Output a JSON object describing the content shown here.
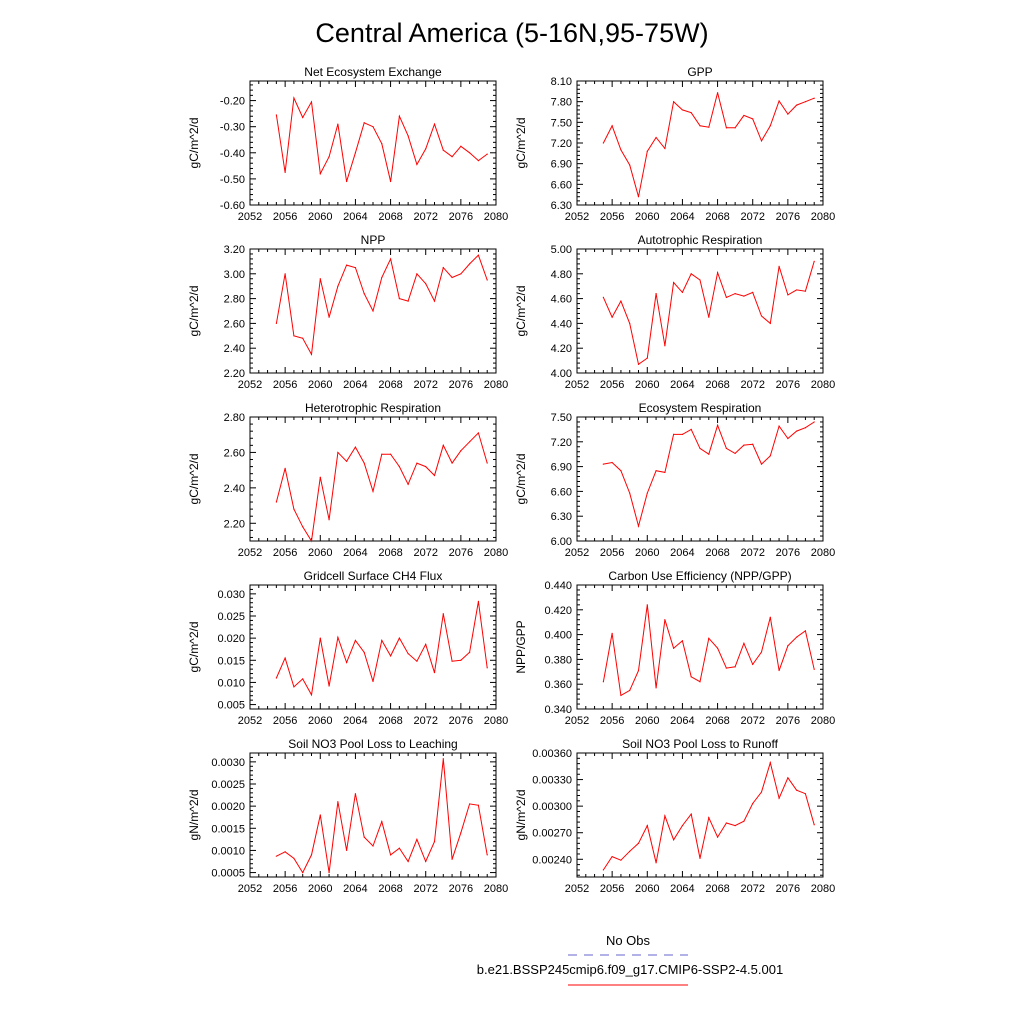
{
  "page_title": "Central America (5-16N,95-75W)",
  "legend": {
    "obs_label": "No Obs",
    "obs_color": "#6666cc",
    "model_label": "b.e21.BSSP245cmip6.f09_g17.CMIP6-SSP2-4.5.001",
    "model_color": "#ff0000"
  },
  "chart_data": [
    {
      "type": "line",
      "title": "Net Ecosystem Exchange",
      "ylabel": "gC/m^2/d",
      "xlim": [
        2052,
        2080
      ],
      "ylim": [
        -0.6,
        -0.125
      ],
      "xticks": [
        "2052",
        "2056",
        "2060",
        "2064",
        "2068",
        "2072",
        "2076",
        "2080"
      ],
      "yticks": [
        "-0.60",
        "-0.50",
        "-0.40",
        "-0.30",
        "-0.20"
      ],
      "x": [
        2055,
        2056,
        2057,
        2058,
        2059,
        2060,
        2061,
        2062,
        2063,
        2064,
        2065,
        2066,
        2067,
        2068,
        2069,
        2070,
        2071,
        2072,
        2073,
        2074,
        2075,
        2076,
        2077,
        2078,
        2079
      ],
      "series": [
        {
          "values": [
            -0.255,
            -0.475,
            -0.19,
            -0.265,
            -0.205,
            -0.48,
            -0.415,
            -0.29,
            -0.51,
            -0.4,
            -0.285,
            -0.3,
            -0.365,
            -0.51,
            -0.26,
            -0.335,
            -0.445,
            -0.385,
            -0.29,
            -0.39,
            -0.415,
            -0.375,
            -0.4,
            -0.43,
            -0.405
          ]
        }
      ]
    },
    {
      "type": "line",
      "title": "GPP",
      "ylabel": "gC/m^2/d",
      "xlim": [
        2052,
        2080
      ],
      "ylim": [
        6.3,
        8.1
      ],
      "xticks": [
        "2052",
        "2056",
        "2060",
        "2064",
        "2068",
        "2072",
        "2076",
        "2080"
      ],
      "yticks": [
        "6.30",
        "6.60",
        "6.90",
        "7.20",
        "7.50",
        "7.80",
        "8.10"
      ],
      "x": [
        2055,
        2056,
        2057,
        2058,
        2059,
        2060,
        2061,
        2062,
        2063,
        2064,
        2065,
        2066,
        2067,
        2068,
        2069,
        2070,
        2071,
        2072,
        2073,
        2074,
        2075,
        2076,
        2077,
        2078,
        2079
      ],
      "series": [
        {
          "values": [
            7.2,
            7.45,
            7.1,
            6.88,
            6.42,
            7.08,
            7.28,
            7.12,
            7.8,
            7.68,
            7.64,
            7.45,
            7.43,
            7.93,
            7.42,
            7.42,
            7.6,
            7.55,
            7.23,
            7.45,
            7.81,
            7.62,
            7.75,
            7.8,
            7.85
          ]
        }
      ]
    },
    {
      "type": "line",
      "title": "NPP",
      "ylabel": "gC/m^2/d",
      "xlim": [
        2052,
        2080
      ],
      "ylim": [
        2.2,
        3.2
      ],
      "xticks": [
        "2052",
        "2056",
        "2060",
        "2064",
        "2068",
        "2072",
        "2076",
        "2080"
      ],
      "yticks": [
        "2.20",
        "2.40",
        "2.60",
        "2.80",
        "3.00",
        "3.20"
      ],
      "x": [
        2055,
        2056,
        2057,
        2058,
        2059,
        2060,
        2061,
        2062,
        2063,
        2064,
        2065,
        2066,
        2067,
        2068,
        2069,
        2070,
        2071,
        2072,
        2073,
        2074,
        2075,
        2076,
        2077,
        2078,
        2079
      ],
      "series": [
        {
          "values": [
            2.6,
            3.0,
            2.5,
            2.48,
            2.35,
            2.96,
            2.65,
            2.9,
            3.07,
            3.05,
            2.84,
            2.7,
            2.97,
            3.12,
            2.8,
            2.78,
            3.0,
            2.92,
            2.78,
            3.05,
            2.97,
            3.0,
            3.08,
            3.15,
            2.95
          ]
        }
      ]
    },
    {
      "type": "line",
      "title": "Autotrophic Respiration",
      "ylabel": "gC/m^2/d",
      "xlim": [
        2052,
        2080
      ],
      "ylim": [
        4.0,
        5.0
      ],
      "xticks": [
        "2052",
        "2056",
        "2060",
        "2064",
        "2068",
        "2072",
        "2076",
        "2080"
      ],
      "yticks": [
        "4.00",
        "4.20",
        "4.40",
        "4.60",
        "4.80",
        "5.00"
      ],
      "x": [
        2055,
        2056,
        2057,
        2058,
        2059,
        2060,
        2061,
        2062,
        2063,
        2064,
        2065,
        2066,
        2067,
        2068,
        2069,
        2070,
        2071,
        2072,
        2073,
        2074,
        2075,
        2076,
        2077,
        2078,
        2079
      ],
      "series": [
        {
          "values": [
            4.61,
            4.45,
            4.58,
            4.4,
            4.07,
            4.12,
            4.64,
            4.22,
            4.73,
            4.65,
            4.8,
            4.75,
            4.45,
            4.81,
            4.61,
            4.64,
            4.62,
            4.65,
            4.46,
            4.4,
            4.86,
            4.63,
            4.67,
            4.66,
            4.9
          ]
        }
      ]
    },
    {
      "type": "line",
      "title": "Heterotrophic Respiration",
      "ylabel": "gC/m^2/d",
      "xlim": [
        2052,
        2080
      ],
      "ylim": [
        2.1,
        2.8
      ],
      "xticks": [
        "2052",
        "2056",
        "2060",
        "2064",
        "2068",
        "2072",
        "2076",
        "2080"
      ],
      "yticks": [
        "2.20",
        "2.40",
        "2.60",
        "2.80"
      ],
      "x": [
        2055,
        2056,
        2057,
        2058,
        2059,
        2060,
        2061,
        2062,
        2063,
        2064,
        2065,
        2066,
        2067,
        2068,
        2069,
        2070,
        2071,
        2072,
        2073,
        2074,
        2075,
        2076,
        2077,
        2078,
        2079
      ],
      "series": [
        {
          "values": [
            2.32,
            2.51,
            2.28,
            2.18,
            2.1,
            2.46,
            2.22,
            2.6,
            2.55,
            2.63,
            2.54,
            2.38,
            2.59,
            2.59,
            2.52,
            2.42,
            2.54,
            2.52,
            2.47,
            2.64,
            2.54,
            2.61,
            2.66,
            2.71,
            2.54
          ]
        }
      ]
    },
    {
      "type": "line",
      "title": "Ecosystem Respiration",
      "ylabel": "gC/m^2/d",
      "xlim": [
        2052,
        2080
      ],
      "ylim": [
        6.0,
        7.5
      ],
      "xticks": [
        "2052",
        "2056",
        "2060",
        "2064",
        "2068",
        "2072",
        "2076",
        "2080"
      ],
      "yticks": [
        "6.00",
        "6.30",
        "6.60",
        "6.90",
        "7.20",
        "7.50"
      ],
      "x": [
        2055,
        2056,
        2057,
        2058,
        2059,
        2060,
        2061,
        2062,
        2063,
        2064,
        2065,
        2066,
        2067,
        2068,
        2069,
        2070,
        2071,
        2072,
        2073,
        2074,
        2075,
        2076,
        2077,
        2078,
        2079
      ],
      "series": [
        {
          "values": [
            6.93,
            6.95,
            6.85,
            6.58,
            6.18,
            6.58,
            6.85,
            6.83,
            7.29,
            7.29,
            7.35,
            7.12,
            7.05,
            7.4,
            7.12,
            7.06,
            7.16,
            7.17,
            6.93,
            7.03,
            7.39,
            7.24,
            7.33,
            7.37,
            7.44
          ]
        }
      ]
    },
    {
      "type": "line",
      "title": "Gridcell Surface CH4 Flux",
      "ylabel": "gC/m^2/d",
      "xlim": [
        2052,
        2080
      ],
      "ylim": [
        0.004,
        0.032
      ],
      "xticks": [
        "2052",
        "2056",
        "2060",
        "2064",
        "2068",
        "2072",
        "2076",
        "2080"
      ],
      "yticks": [
        "0.005",
        "0.010",
        "0.015",
        "0.020",
        "0.025",
        "0.030"
      ],
      "x": [
        2055,
        2056,
        2057,
        2058,
        2059,
        2060,
        2061,
        2062,
        2063,
        2064,
        2065,
        2066,
        2067,
        2068,
        2069,
        2070,
        2071,
        2072,
        2073,
        2074,
        2075,
        2076,
        2077,
        2078,
        2079
      ],
      "series": [
        {
          "values": [
            0.011,
            0.0155,
            0.009,
            0.0108,
            0.0072,
            0.02,
            0.0092,
            0.0202,
            0.0145,
            0.0195,
            0.0168,
            0.0102,
            0.0195,
            0.016,
            0.02,
            0.0165,
            0.0148,
            0.0186,
            0.0122,
            0.0255,
            0.0148,
            0.015,
            0.0168,
            0.0283,
            0.0133
          ]
        }
      ]
    },
    {
      "type": "line",
      "title": "Carbon Use Efficiency (NPP/GPP)",
      "ylabel": "NPP/GPP",
      "xlim": [
        2052,
        2080
      ],
      "ylim": [
        0.34,
        0.44
      ],
      "xticks": [
        "2052",
        "2056",
        "2060",
        "2064",
        "2068",
        "2072",
        "2076",
        "2080"
      ],
      "yticks": [
        "0.340",
        "0.360",
        "0.380",
        "0.400",
        "0.420",
        "0.440"
      ],
      "x": [
        2055,
        2056,
        2057,
        2058,
        2059,
        2060,
        2061,
        2062,
        2063,
        2064,
        2065,
        2066,
        2067,
        2068,
        2069,
        2070,
        2071,
        2072,
        2073,
        2074,
        2075,
        2076,
        2077,
        2078,
        2079
      ],
      "series": [
        {
          "values": [
            0.362,
            0.401,
            0.351,
            0.355,
            0.371,
            0.424,
            0.357,
            0.412,
            0.389,
            0.395,
            0.366,
            0.362,
            0.397,
            0.389,
            0.373,
            0.374,
            0.393,
            0.376,
            0.386,
            0.414,
            0.371,
            0.391,
            0.398,
            0.403,
            0.372
          ]
        }
      ]
    },
    {
      "type": "line",
      "title": "Soil NO3 Pool Loss to Leaching",
      "ylabel": "gN/m^2/d",
      "xlim": [
        2052,
        2080
      ],
      "ylim": [
        0.0004,
        0.0032
      ],
      "xticks": [
        "2052",
        "2056",
        "2060",
        "2064",
        "2068",
        "2072",
        "2076",
        "2080"
      ],
      "yticks": [
        "0.0005",
        "0.0010",
        "0.0015",
        "0.0020",
        "0.0025",
        "0.0030"
      ],
      "x": [
        2055,
        2056,
        2057,
        2058,
        2059,
        2060,
        2061,
        2062,
        2063,
        2064,
        2065,
        2066,
        2067,
        2068,
        2069,
        2070,
        2071,
        2072,
        2073,
        2074,
        2075,
        2076,
        2077,
        2078,
        2079
      ],
      "series": [
        {
          "values": [
            0.00087,
            0.00097,
            0.00082,
            0.0005,
            0.0009,
            0.0018,
            0.0005,
            0.0021,
            0.001,
            0.00228,
            0.0013,
            0.0011,
            0.00165,
            0.0009,
            0.00105,
            0.00075,
            0.00125,
            0.00075,
            0.0012,
            0.00307,
            0.0008,
            0.0014,
            0.00205,
            0.00202,
            0.0009
          ]
        }
      ]
    },
    {
      "type": "line",
      "title": "Soil NO3 Pool Loss to Runoff",
      "ylabel": "gN/m^2/d",
      "xlim": [
        2052,
        2080
      ],
      "ylim": [
        0.0022,
        0.0036
      ],
      "xticks": [
        "2052",
        "2056",
        "2060",
        "2064",
        "2068",
        "2072",
        "2076",
        "2080"
      ],
      "yticks": [
        "0.00240",
        "0.00270",
        "0.00300",
        "0.00330",
        "0.00360"
      ],
      "x": [
        2055,
        2056,
        2057,
        2058,
        2059,
        2060,
        2061,
        2062,
        2063,
        2064,
        2065,
        2066,
        2067,
        2068,
        2069,
        2070,
        2071,
        2072,
        2073,
        2074,
        2075,
        2076,
        2077,
        2078,
        2079
      ],
      "series": [
        {
          "values": [
            0.00228,
            0.00243,
            0.00239,
            0.00249,
            0.00258,
            0.00278,
            0.00236,
            0.00289,
            0.00262,
            0.00278,
            0.00291,
            0.00241,
            0.00287,
            0.00265,
            0.00281,
            0.00278,
            0.00283,
            0.00303,
            0.00316,
            0.00349,
            0.00309,
            0.00332,
            0.00318,
            0.00314,
            0.00279
          ]
        }
      ]
    }
  ]
}
